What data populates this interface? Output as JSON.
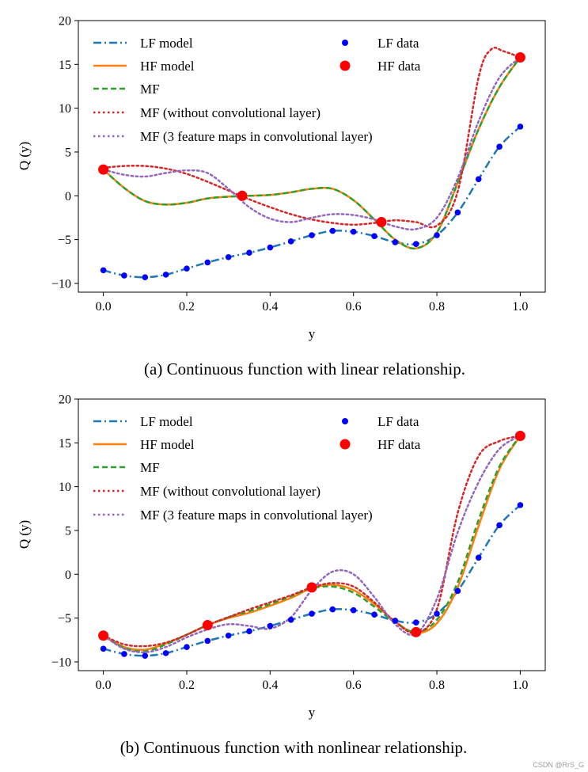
{
  "chart_data": [
    {
      "id": "a",
      "type": "line",
      "caption": "(a) Continuous function with linear relationship.",
      "xlabel": "y",
      "ylabel": "Q (y)",
      "xlim": [
        -0.06,
        1.06
      ],
      "ylim": [
        -11,
        20
      ],
      "xticks": [
        0.0,
        0.2,
        0.4,
        0.6,
        0.8,
        1.0
      ],
      "xtick_labels": [
        "0.0",
        "0.2",
        "0.4",
        "0.6",
        "0.8",
        "1.0"
      ],
      "yticks": [
        -10,
        -5,
        0,
        5,
        10,
        15,
        20
      ],
      "ytick_labels": [
        "−10",
        "−5",
        "0",
        "5",
        "10",
        "15",
        "20"
      ],
      "legend": [
        "LF model",
        "HF model",
        "MF",
        "MF (without convolutional layer)",
        "MF (3 feature maps in convolutional layer)",
        "LF data",
        "HF data"
      ],
      "series": [
        {
          "name": "LF model",
          "style": "dashdot",
          "color": "#1f77b4",
          "x": [
            0,
            0.05,
            0.1,
            0.15,
            0.2,
            0.25,
            0.3,
            0.35,
            0.4,
            0.45,
            0.5,
            0.55,
            0.6,
            0.65,
            0.7,
            0.75,
            0.8,
            0.85,
            0.9,
            0.95,
            1.0
          ],
          "y": [
            -8.5,
            -9.1,
            -9.3,
            -9.0,
            -8.3,
            -7.6,
            -7.0,
            -6.5,
            -5.9,
            -5.2,
            -4.5,
            -4.0,
            -4.1,
            -4.6,
            -5.3,
            -5.5,
            -4.5,
            -1.9,
            1.9,
            5.6,
            7.9
          ]
        },
        {
          "name": "HF model",
          "style": "solid",
          "color": "#ff7f0e",
          "x": [
            0,
            0.05,
            0.1,
            0.15,
            0.2,
            0.25,
            0.3,
            0.35,
            0.4,
            0.45,
            0.5,
            0.55,
            0.6,
            0.65,
            0.7,
            0.75,
            0.8,
            0.85,
            0.9,
            0.95,
            1.0
          ],
          "y": [
            3.0,
            0.9,
            -0.6,
            -1.0,
            -0.8,
            -0.3,
            -0.1,
            0.0,
            0.1,
            0.4,
            0.8,
            0.8,
            -0.5,
            -2.7,
            -5.0,
            -6.0,
            -4.2,
            1.5,
            7.6,
            12.4,
            15.8
          ]
        },
        {
          "name": "MF",
          "style": "dashed",
          "color": "#2ca02c",
          "x": [
            0,
            0.05,
            0.1,
            0.15,
            0.2,
            0.25,
            0.3,
            0.35,
            0.4,
            0.45,
            0.5,
            0.55,
            0.6,
            0.65,
            0.7,
            0.75,
            0.8,
            0.85,
            0.9,
            0.95,
            1.0
          ],
          "y": [
            3.0,
            0.9,
            -0.6,
            -1.0,
            -0.8,
            -0.3,
            -0.1,
            0.0,
            0.1,
            0.4,
            0.8,
            0.8,
            -0.5,
            -2.7,
            -5.0,
            -6.0,
            -4.2,
            1.5,
            7.6,
            12.4,
            15.8
          ]
        },
        {
          "name": "MF (without convolutional layer)",
          "style": "dotted",
          "color": "#d62728",
          "x": [
            0,
            0.05,
            0.1,
            0.15,
            0.2,
            0.25,
            0.3,
            0.35,
            0.4,
            0.45,
            0.5,
            0.55,
            0.6,
            0.65,
            0.7,
            0.75,
            0.8,
            0.85,
            0.9,
            0.93,
            0.96,
            1.0
          ],
          "y": [
            3.2,
            3.4,
            3.4,
            3.1,
            2.5,
            1.6,
            0.6,
            -0.4,
            -1.3,
            -2.1,
            -2.7,
            -3.1,
            -3.3,
            -3.1,
            -2.8,
            -3.0,
            -3.4,
            0.5,
            13.5,
            16.7,
            16.5,
            15.8
          ]
        },
        {
          "name": "MF (3 feature maps in convolutional layer)",
          "style": "dotted",
          "color": "#9467bd",
          "x": [
            0,
            0.05,
            0.1,
            0.15,
            0.2,
            0.25,
            0.3,
            0.35,
            0.4,
            0.45,
            0.5,
            0.55,
            0.6,
            0.65,
            0.7,
            0.75,
            0.8,
            0.85,
            0.9,
            0.95,
            1.0
          ],
          "y": [
            3.0,
            2.4,
            2.2,
            2.6,
            2.9,
            2.6,
            0.8,
            -1.3,
            -2.6,
            -3.0,
            -2.5,
            -2.1,
            -2.2,
            -2.7,
            -3.5,
            -3.8,
            -2.5,
            2.0,
            8.5,
            13.5,
            15.8
          ]
        }
      ],
      "lf_data": {
        "x": [
          0,
          0.05,
          0.1,
          0.15,
          0.2,
          0.25,
          0.3,
          0.35,
          0.4,
          0.45,
          0.5,
          0.55,
          0.6,
          0.65,
          0.7,
          0.75,
          0.8,
          0.85,
          0.9,
          0.95,
          1.0
        ],
        "y": [
          -8.5,
          -9.1,
          -9.3,
          -9.0,
          -8.3,
          -7.6,
          -7.0,
          -6.5,
          -5.9,
          -5.2,
          -4.5,
          -4.0,
          -4.1,
          -4.6,
          -5.3,
          -5.5,
          -4.5,
          -1.9,
          1.9,
          5.6,
          7.9
        ],
        "color": "#0000ff"
      },
      "hf_data": {
        "x": [
          0,
          0.333,
          0.667,
          1.0
        ],
        "y": [
          3.0,
          0.0,
          -3.0,
          15.8
        ],
        "color": "#ff0000"
      }
    },
    {
      "id": "b",
      "type": "line",
      "caption": "(b) Continuous function with nonlinear relationship.",
      "xlabel": "y",
      "ylabel": "Q (y)",
      "xlim": [
        -0.06,
        1.06
      ],
      "ylim": [
        -11,
        20
      ],
      "xticks": [
        0.0,
        0.2,
        0.4,
        0.6,
        0.8,
        1.0
      ],
      "xtick_labels": [
        "0.0",
        "0.2",
        "0.4",
        "0.6",
        "0.8",
        "1.0"
      ],
      "yticks": [
        -10,
        -5,
        0,
        5,
        10,
        15,
        20
      ],
      "ytick_labels": [
        "−10",
        "−5",
        "0",
        "5",
        "10",
        "15",
        "20"
      ],
      "legend": [
        "LF model",
        "HF model",
        "MF",
        "MF (without convolutional layer)",
        "MF (3 feature maps in convolutional layer)",
        "LF data",
        "HF data"
      ],
      "series": [
        {
          "name": "LF model",
          "style": "dashdot",
          "color": "#1f77b4",
          "x": [
            0,
            0.05,
            0.1,
            0.15,
            0.2,
            0.25,
            0.3,
            0.35,
            0.4,
            0.45,
            0.5,
            0.55,
            0.6,
            0.65,
            0.7,
            0.75,
            0.8,
            0.85,
            0.9,
            0.95,
            1.0
          ],
          "y": [
            -8.5,
            -9.1,
            -9.3,
            -9.0,
            -8.3,
            -7.6,
            -7.0,
            -6.5,
            -5.9,
            -5.2,
            -4.5,
            -4.0,
            -4.1,
            -4.6,
            -5.3,
            -5.5,
            -4.5,
            -1.9,
            1.9,
            5.6,
            7.9
          ]
        },
        {
          "name": "HF model",
          "style": "solid",
          "color": "#ff7f0e",
          "x": [
            0,
            0.05,
            0.1,
            0.15,
            0.2,
            0.25,
            0.3,
            0.35,
            0.4,
            0.45,
            0.5,
            0.55,
            0.6,
            0.65,
            0.7,
            0.75,
            0.8,
            0.85,
            0.9,
            0.95,
            1.0
          ],
          "y": [
            -7.0,
            -8.3,
            -8.6,
            -7.9,
            -6.9,
            -5.8,
            -5.0,
            -4.4,
            -3.6,
            -2.7,
            -1.6,
            -1.2,
            -1.8,
            -3.4,
            -5.4,
            -6.7,
            -5.6,
            -1.5,
            5.5,
            12.0,
            15.8
          ]
        },
        {
          "name": "MF",
          "style": "dashed",
          "color": "#2ca02c",
          "x": [
            0,
            0.05,
            0.1,
            0.15,
            0.2,
            0.25,
            0.3,
            0.35,
            0.4,
            0.45,
            0.5,
            0.55,
            0.6,
            0.65,
            0.7,
            0.75,
            0.8,
            0.85,
            0.9,
            0.95,
            1.0
          ],
          "y": [
            -7.0,
            -8.4,
            -8.8,
            -8.0,
            -6.9,
            -5.8,
            -4.9,
            -4.2,
            -3.4,
            -2.5,
            -1.6,
            -1.4,
            -2.1,
            -3.7,
            -5.5,
            -6.6,
            -5.2,
            -0.9,
            6.2,
            12.3,
            15.8
          ]
        },
        {
          "name": "MF (without convolutional layer)",
          "style": "dotted",
          "color": "#d62728",
          "x": [
            0,
            0.05,
            0.1,
            0.15,
            0.2,
            0.25,
            0.3,
            0.35,
            0.4,
            0.45,
            0.5,
            0.55,
            0.6,
            0.65,
            0.7,
            0.75,
            0.8,
            0.85,
            0.9,
            0.95,
            1.0
          ],
          "y": [
            -7.0,
            -8.0,
            -8.2,
            -7.8,
            -6.9,
            -5.8,
            -4.9,
            -4.0,
            -3.2,
            -2.4,
            -1.5,
            -1.0,
            -1.4,
            -3.2,
            -5.4,
            -6.7,
            -4.0,
            7.0,
            13.5,
            15.2,
            15.8
          ]
        },
        {
          "name": "MF (3 feature maps in convolutional layer)",
          "style": "dotted",
          "color": "#9467bd",
          "x": [
            0,
            0.05,
            0.1,
            0.15,
            0.2,
            0.25,
            0.3,
            0.35,
            0.4,
            0.45,
            0.5,
            0.55,
            0.6,
            0.65,
            0.7,
            0.75,
            0.8,
            0.85,
            0.9,
            0.95,
            1.0
          ],
          "y": [
            -7.0,
            -8.5,
            -8.9,
            -8.3,
            -7.2,
            -6.3,
            -5.7,
            -5.9,
            -6.2,
            -4.9,
            -1.8,
            0.3,
            0.0,
            -2.6,
            -5.7,
            -6.8,
            -2.8,
            4.8,
            10.5,
            14.3,
            15.8
          ]
        }
      ],
      "lf_data": {
        "x": [
          0,
          0.05,
          0.1,
          0.15,
          0.2,
          0.25,
          0.3,
          0.35,
          0.4,
          0.45,
          0.5,
          0.55,
          0.6,
          0.65,
          0.7,
          0.75,
          0.8,
          0.85,
          0.9,
          0.95,
          1.0
        ],
        "y": [
          -8.5,
          -9.1,
          -9.3,
          -9.0,
          -8.3,
          -7.6,
          -7.0,
          -6.5,
          -5.9,
          -5.2,
          -4.5,
          -4.0,
          -4.1,
          -4.6,
          -5.3,
          -5.5,
          -4.5,
          -1.9,
          1.9,
          5.6,
          7.9
        ],
        "color": "#0000ff"
      },
      "hf_data": {
        "x": [
          0,
          0.25,
          0.5,
          0.75,
          1.0
        ],
        "y": [
          -7.0,
          -5.8,
          -1.5,
          -6.6,
          15.8
        ],
        "color": "#ff0000"
      }
    }
  ],
  "watermark": "CSDN @RrS_G"
}
